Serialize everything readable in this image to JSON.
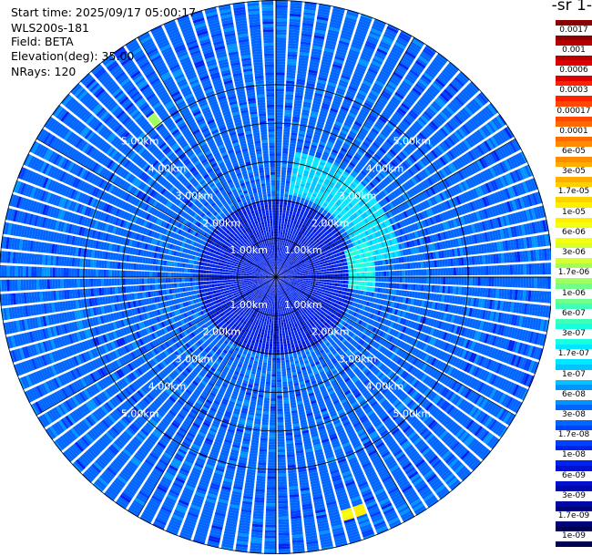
{
  "info": {
    "start_time": "Start time: 2025/09/17 05:00:17",
    "instrument": "WLS200s-181",
    "field": "Field: BETA",
    "elevation": "Elevation(deg): 35.00",
    "nrays": "NRays: 120"
  },
  "colorbar": {
    "title": "-1 sr-",
    "levels": [
      "0.0017",
      "0.001",
      "0.0006",
      "0.0003",
      "0.00017",
      "0.0001",
      "6e-05",
      "3e-05",
      "1.7e-05",
      "1e-05",
      "6e-06",
      "3e-06",
      "1.7e-06",
      "1e-06",
      "6e-07",
      "3e-07",
      "1.7e-07",
      "1e-07",
      "6e-08",
      "3e-08",
      "1.7e-08",
      "1e-08",
      "6e-09",
      "3e-09",
      "1.7e-09",
      "1e-09"
    ],
    "colors": [
      "#8b0000",
      "#b40000",
      "#dc0000",
      "#ff2000",
      "#ff4800",
      "#ff6a00",
      "#ff8c00",
      "#ffae00",
      "#ffd000",
      "#ffee00",
      "#f4ff10",
      "#d4ff30",
      "#a0ff60",
      "#70ff8a",
      "#40ffb8",
      "#18ffe0",
      "#00e8ff",
      "#00c4ff",
      "#0094ff",
      "#0066ff",
      "#0040ff",
      "#0022ee",
      "#0010cc",
      "#0008a8",
      "#00047a",
      "#000050"
    ]
  },
  "chart_data": {
    "type": "heatmap",
    "projection": "polar PPI",
    "field": "BETA",
    "elevation_deg": 35.0,
    "n_rays": 120,
    "range_rings_km": [
      1,
      2,
      3,
      4,
      5
    ],
    "range_labels": [
      "1.00km",
      "2.00km",
      "3.00km",
      "4.00km",
      "5.00km"
    ],
    "max_range_km": 7.2,
    "spokes_deg": [
      0,
      30,
      60,
      90,
      120,
      150,
      180,
      210,
      240,
      270,
      300,
      330
    ],
    "background_class": "3e-08",
    "near_field_class": "1e-08",
    "features": [
      {
        "description_class": "1.7e-07",
        "azimuth_deg": [
          10,
          80
        ],
        "range_km": [
          2.2,
          3.3
        ]
      },
      {
        "description_class": "3e-07",
        "azimuth_deg": [
          70,
          100
        ],
        "range_km": [
          1.9,
          2.6
        ]
      },
      {
        "description_class": "1.7e-06",
        "azimuth_deg": [
          320,
          324
        ],
        "range_km": [
          5.0,
          5.3
        ]
      },
      {
        "description_class": "1e-05",
        "azimuth_deg": [
          160,
          164
        ],
        "range_km": [
          6.3,
          6.6
        ]
      }
    ]
  }
}
